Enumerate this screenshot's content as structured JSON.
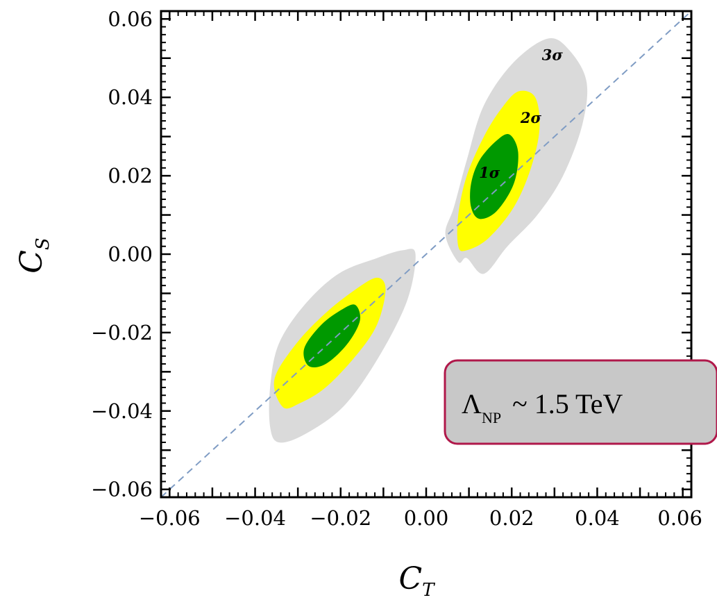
{
  "chart_data": {
    "type": "contour",
    "xlabel": "C",
    "xlabel_sub": "T",
    "ylabel": "C",
    "ylabel_sub": "S",
    "xlim": [
      -0.062,
      0.062
    ],
    "ylim": [
      -0.062,
      0.062
    ],
    "xticks": [
      -0.06,
      -0.04,
      -0.02,
      0.0,
      0.02,
      0.04,
      0.06
    ],
    "xtick_labels": [
      "−0.06",
      "−0.04",
      "−0.02",
      "0.00",
      "0.02",
      "0.04",
      "0.06"
    ],
    "yticks": [
      -0.06,
      -0.04,
      -0.02,
      0.0,
      0.02,
      0.04,
      0.06
    ],
    "ytick_labels": [
      "−0.06",
      "−0.04",
      "−0.02",
      "0.00",
      "0.02",
      "0.04",
      "0.06"
    ],
    "reference_line": {
      "name": "C_S = C_T",
      "x": [
        -0.062,
        0.062
      ],
      "y": [
        -0.062,
        0.062
      ],
      "color": "#7f9cc4",
      "style": "dashed"
    },
    "regions": [
      {
        "level": "3σ",
        "color": "#dadada",
        "center": [
          0.0235,
          0.023
        ],
        "polygon": [
          [
            0.0335,
            0.052
          ],
          [
            0.0375,
            0.044
          ],
          [
            0.0365,
            0.033
          ],
          [
            0.032,
            0.02
          ],
          [
            0.026,
            0.01
          ],
          [
            0.019,
            0.002
          ],
          [
            0.0135,
            -0.005
          ],
          [
            0.0095,
            -0.001
          ],
          [
            0.0075,
            -0.002
          ],
          [
            0.0045,
            0.005
          ],
          [
            0.0065,
            0.012
          ],
          [
            0.0095,
            0.024
          ],
          [
            0.0135,
            0.038
          ],
          [
            0.0205,
            0.049
          ],
          [
            0.0285,
            0.055
          ]
        ]
      },
      {
        "level": "3σ",
        "color": "#dadada",
        "center": [
          -0.0195,
          -0.024
        ],
        "polygon": [
          [
            -0.0345,
            -0.048
          ],
          [
            -0.0285,
            -0.046
          ],
          [
            -0.0195,
            -0.039
          ],
          [
            -0.0115,
            -0.027
          ],
          [
            -0.0045,
            -0.012
          ],
          [
            -0.0025,
            0.0
          ],
          [
            -0.0055,
            0.001
          ],
          [
            -0.0115,
            -0.001
          ],
          [
            -0.0205,
            -0.005
          ],
          [
            -0.0285,
            -0.013
          ],
          [
            -0.0345,
            -0.023
          ],
          [
            -0.0365,
            -0.034
          ],
          [
            -0.0365,
            -0.044
          ]
        ]
      },
      {
        "level": "2σ",
        "color": "#ffff00",
        "center": [
          0.0175,
          0.022
        ],
        "polygon": [
          [
            0.0215,
            0.0415
          ],
          [
            0.0255,
            0.04
          ],
          [
            0.0265,
            0.032
          ],
          [
            0.0245,
            0.022
          ],
          [
            0.0205,
            0.012
          ],
          [
            0.0145,
            0.004
          ],
          [
            0.0095,
            0.001
          ],
          [
            0.0075,
            0.002
          ],
          [
            0.0075,
            0.01
          ],
          [
            0.0095,
            0.02
          ],
          [
            0.0135,
            0.03
          ],
          [
            0.0175,
            0.037
          ]
        ]
      },
      {
        "level": "2σ",
        "color": "#ffff00",
        "center": [
          -0.022,
          -0.022
        ],
        "polygon": [
          [
            -0.0335,
            -0.039
          ],
          [
            -0.0295,
            -0.038
          ],
          [
            -0.0235,
            -0.034
          ],
          [
            -0.0165,
            -0.026
          ],
          [
            -0.0115,
            -0.018
          ],
          [
            -0.0095,
            -0.009
          ],
          [
            -0.0115,
            -0.006
          ],
          [
            -0.0165,
            -0.009
          ],
          [
            -0.0235,
            -0.015
          ],
          [
            -0.0305,
            -0.023
          ],
          [
            -0.0355,
            -0.032
          ]
        ]
      },
      {
        "level": "1σ",
        "color": "#009900",
        "center": [
          0.016,
          0.02
        ],
        "polygon": [
          [
            0.0195,
            0.0305
          ],
          [
            0.0215,
            0.026
          ],
          [
            0.0205,
            0.018
          ],
          [
            0.0165,
            0.011
          ],
          [
            0.0125,
            0.009
          ],
          [
            0.0105,
            0.012
          ],
          [
            0.0105,
            0.018
          ],
          [
            0.0125,
            0.024
          ],
          [
            0.0165,
            0.029
          ]
        ]
      },
      {
        "level": "1σ",
        "color": "#009900",
        "center": [
          -0.022,
          -0.021
        ],
        "polygon": [
          [
            -0.0275,
            -0.0285
          ],
          [
            -0.0235,
            -0.028
          ],
          [
            -0.0185,
            -0.023
          ],
          [
            -0.0155,
            -0.017
          ],
          [
            -0.0165,
            -0.013
          ],
          [
            -0.0195,
            -0.014
          ],
          [
            -0.0245,
            -0.018
          ],
          [
            -0.0285,
            -0.024
          ]
        ]
      }
    ],
    "annotations": [
      {
        "text": "3σ",
        "x": 0.0295,
        "y": 0.0495
      },
      {
        "text": "2σ",
        "x": 0.0245,
        "y": 0.0335
      },
      {
        "text": "1σ",
        "x": 0.0148,
        "y": 0.0195
      }
    ],
    "callout": {
      "symbol": "Λ",
      "sub": "NP",
      "text": "~ 1.5 TeV",
      "fill": "#c8c8c8",
      "stroke": "#b0184a"
    }
  }
}
